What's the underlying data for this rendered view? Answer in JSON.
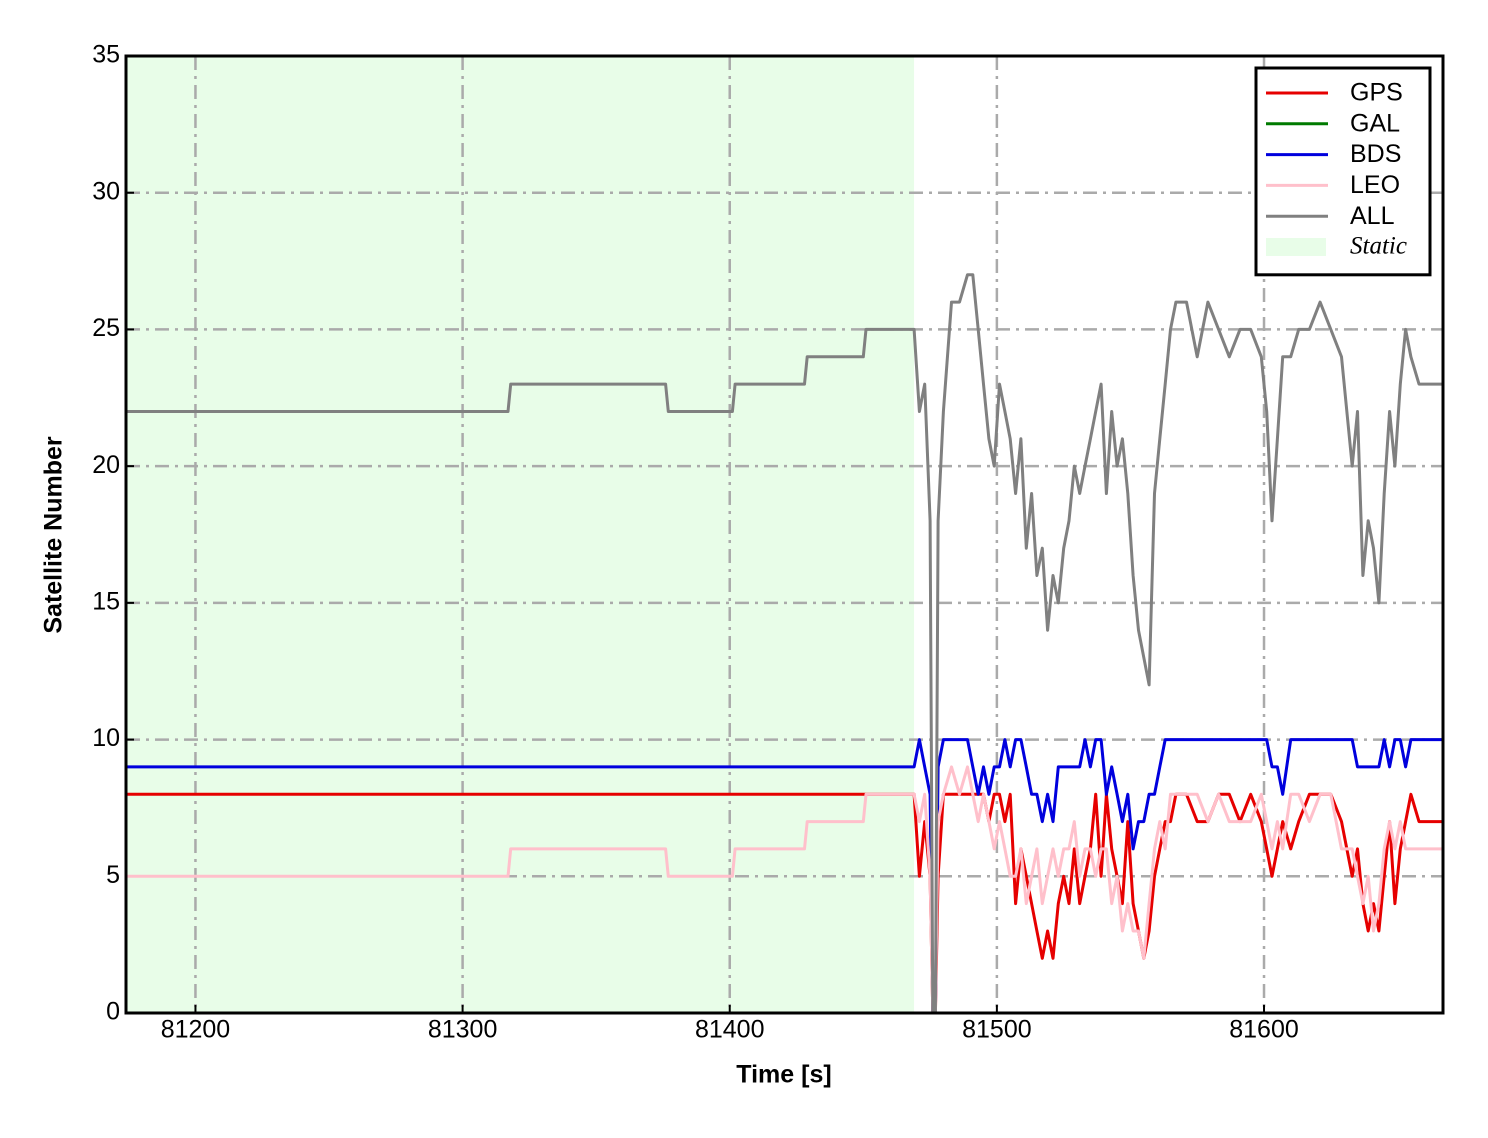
{
  "chart_data": {
    "type": "line",
    "xlabel": "Time [s]",
    "ylabel": "Satellite Number",
    "xlim": [
      81174,
      81667
    ],
    "ylim": [
      0,
      35
    ],
    "xticks": [
      81200,
      81300,
      81400,
      81500,
      81600
    ],
    "yticks": [
      0,
      5,
      10,
      15,
      20,
      25,
      30,
      35
    ],
    "grid": true,
    "legend": "upper right",
    "static_region": {
      "label": "Static",
      "color": "#e8fde8",
      "x": [
        81174,
        81469
      ]
    },
    "x": [
      81174,
      81317,
      81318,
      81376,
      81377,
      81401,
      81402,
      81428,
      81429,
      81450,
      81451,
      81469,
      81471,
      81473,
      81475,
      81476,
      81477,
      81478,
      81480,
      81483,
      81486,
      81489,
      81491,
      81493,
      81495,
      81497,
      81499,
      81501,
      81503,
      81505,
      81507,
      81509,
      81511,
      81513,
      81515,
      81517,
      81519,
      81521,
      81523,
      81525,
      81527,
      81529,
      81531,
      81533,
      81535,
      81537,
      81539,
      81541,
      81543,
      81545,
      81547,
      81549,
      81551,
      81553,
      81555,
      81557,
      81559,
      81561,
      81563,
      81565,
      81567,
      81571,
      81575,
      81579,
      81583,
      81587,
      81591,
      81595,
      81599,
      81601,
      81603,
      81605,
      81607,
      81610,
      81613,
      81617,
      81621,
      81625,
      81629,
      81633,
      81635,
      81637,
      81639,
      81641,
      81643,
      81645,
      81647,
      81649,
      81651,
      81653,
      81655,
      81658,
      81661,
      81664,
      81667
    ],
    "series": [
      {
        "name": "GPS",
        "color": "#e60000",
        "values": [
          8,
          8,
          8,
          8,
          8,
          8,
          8,
          8,
          8,
          8,
          8,
          8,
          5,
          7,
          5,
          0,
          0,
          5,
          8,
          8,
          8,
          8,
          8,
          8,
          8,
          7,
          8,
          8,
          7,
          8,
          4,
          6,
          5,
          4,
          3,
          2,
          3,
          2,
          4,
          5,
          4,
          6,
          4,
          5,
          6,
          8,
          5,
          8,
          6,
          5,
          4,
          7,
          4,
          3,
          2,
          3,
          5,
          6,
          7,
          7,
          8,
          8,
          7,
          7,
          8,
          8,
          7,
          8,
          7,
          6,
          5,
          6,
          7,
          6,
          7,
          8,
          8,
          8,
          7,
          5,
          6,
          4,
          3,
          4,
          3,
          5,
          7,
          4,
          6,
          7,
          8,
          7,
          7,
          7,
          7
        ]
      },
      {
        "name": "GAL",
        "color": "#007a00",
        "values": [
          0,
          0,
          0,
          0,
          0,
          0,
          0,
          0,
          0,
          0,
          0,
          0,
          0,
          0,
          0,
          0,
          0,
          0,
          0,
          0,
          0,
          0,
          0,
          0,
          0,
          0,
          0,
          0,
          0,
          0,
          0,
          0,
          0,
          0,
          0,
          0,
          0,
          0,
          0,
          0,
          0,
          0,
          0,
          0,
          0,
          0,
          0,
          0,
          0,
          0,
          0,
          0,
          0,
          0,
          0,
          0,
          0,
          0,
          0,
          0,
          0,
          0,
          0,
          0,
          0,
          0,
          0,
          0,
          0,
          0,
          0,
          0,
          0,
          0,
          0,
          0,
          0,
          0,
          0,
          0,
          0,
          0,
          0,
          0,
          0,
          0,
          0,
          0,
          0,
          0,
          0,
          0,
          0,
          0,
          0
        ]
      },
      {
        "name": "BDS",
        "color": "#0000dd",
        "values": [
          9,
          9,
          9,
          9,
          9,
          9,
          9,
          9,
          9,
          9,
          9,
          9,
          10,
          9,
          8,
          0,
          0,
          9,
          10,
          10,
          10,
          10,
          9,
          8,
          9,
          8,
          9,
          9,
          10,
          9,
          10,
          10,
          9,
          8,
          8,
          7,
          8,
          7,
          9,
          9,
          9,
          9,
          9,
          10,
          9,
          10,
          10,
          8,
          9,
          8,
          7,
          8,
          6,
          7,
          7,
          8,
          8,
          9,
          10,
          10,
          10,
          10,
          10,
          10,
          10,
          10,
          10,
          10,
          10,
          10,
          9,
          9,
          8,
          10,
          10,
          10,
          10,
          10,
          10,
          10,
          9,
          9,
          9,
          9,
          9,
          10,
          9,
          10,
          10,
          9,
          10,
          10,
          10,
          10,
          10
        ]
      },
      {
        "name": "LEO",
        "color": "#ffc0cb",
        "values": [
          5,
          5,
          6,
          6,
          5,
          5,
          6,
          6,
          7,
          7,
          8,
          8,
          7,
          8,
          5,
          0,
          0,
          7,
          8,
          9,
          8,
          9,
          8,
          7,
          8,
          7,
          6,
          7,
          6,
          5,
          5,
          6,
          4,
          5,
          6,
          4,
          5,
          6,
          5,
          6,
          6,
          7,
          5,
          6,
          6,
          5,
          6,
          6,
          4,
          5,
          3,
          4,
          3,
          3,
          2,
          4,
          6,
          7,
          6,
          8,
          8,
          8,
          8,
          7,
          8,
          7,
          7,
          7,
          8,
          7,
          6,
          7,
          6,
          8,
          8,
          7,
          8,
          8,
          6,
          6,
          5,
          4,
          5,
          3,
          4,
          6,
          7,
          6,
          7,
          6,
          6,
          6,
          6,
          6,
          6
        ]
      },
      {
        "name": "ALL",
        "color": "#808080",
        "values": [
          22,
          22,
          23,
          23,
          22,
          22,
          23,
          23,
          24,
          24,
          25,
          25,
          22,
          23,
          18,
          0,
          0,
          18,
          22,
          26,
          26,
          27,
          27,
          25,
          23,
          21,
          20,
          23,
          22,
          21,
          19,
          21,
          17,
          19,
          16,
          17,
          14,
          16,
          15,
          17,
          18,
          20,
          19,
          20,
          21,
          22,
          23,
          19,
          22,
          20,
          21,
          19,
          16,
          14,
          13,
          12,
          19,
          21,
          23,
          25,
          26,
          26,
          24,
          26,
          25,
          24,
          25,
          25,
          24,
          22,
          18,
          21,
          24,
          24,
          25,
          25,
          26,
          25,
          24,
          20,
          22,
          16,
          18,
          17,
          15,
          19,
          22,
          20,
          23,
          25,
          24,
          23,
          23,
          23,
          23
        ]
      }
    ]
  }
}
